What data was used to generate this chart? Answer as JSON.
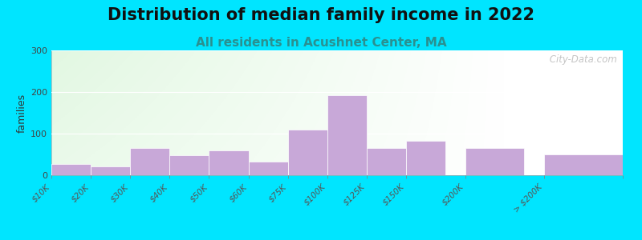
{
  "title": "Distribution of median family income in 2022",
  "subtitle": "All residents in Acushnet Center, MA",
  "ylabel": "families",
  "categories": [
    "$10K",
    "$20K",
    "$30K",
    "$40K",
    "$50K",
    "$60K",
    "$75K",
    "$100K",
    "$125K",
    "$150K",
    "$200K",
    "> $200K"
  ],
  "values": [
    27,
    22,
    65,
    48,
    60,
    33,
    110,
    192,
    65,
    82,
    65,
    50
  ],
  "bar_color": "#c8a8d8",
  "bar_edge_color": "#ffffff",
  "ylim": [
    0,
    300
  ],
  "yticks": [
    0,
    100,
    200,
    300
  ],
  "background_outer": "#00e5ff",
  "title_fontsize": 15,
  "subtitle_fontsize": 11,
  "title_color": "#111111",
  "subtitle_color": "#2a9090",
  "ylabel_fontsize": 9,
  "watermark": " City-Data.com"
}
